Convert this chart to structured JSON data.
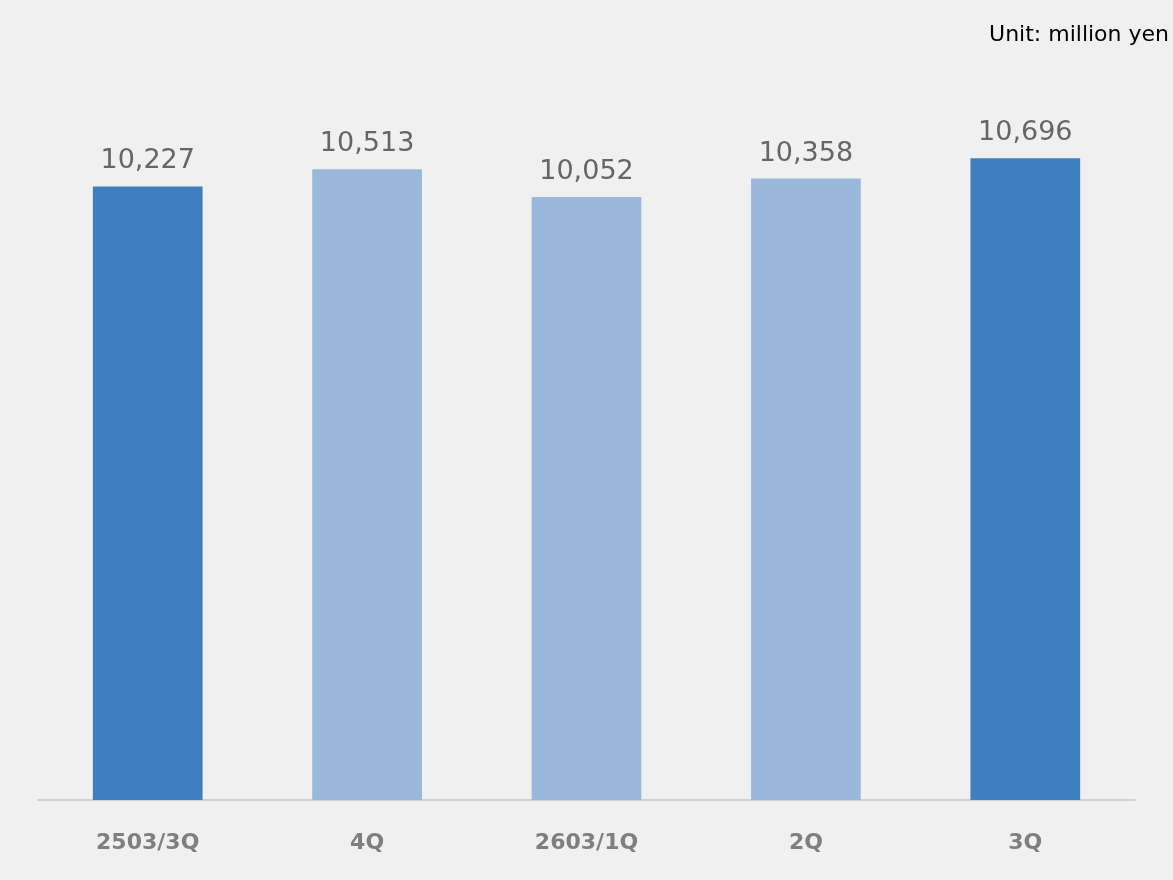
{
  "chart_data": {
    "type": "bar",
    "categories": [
      "2503/3Q",
      "4Q",
      "2603/1Q",
      "2Q",
      "3Q"
    ],
    "values": [
      10227,
      10513,
      10052,
      10358,
      10696
    ],
    "colors": [
      "#3f7ebf",
      "#9ab8db",
      "#9ab8db",
      "#9ab8db",
      "#3f7ebf"
    ],
    "value_labels": [
      "10,227",
      "10,513",
      "10,052",
      "10,358",
      "10,696"
    ],
    "annotations": [
      "Unit: million yen"
    ]
  }
}
